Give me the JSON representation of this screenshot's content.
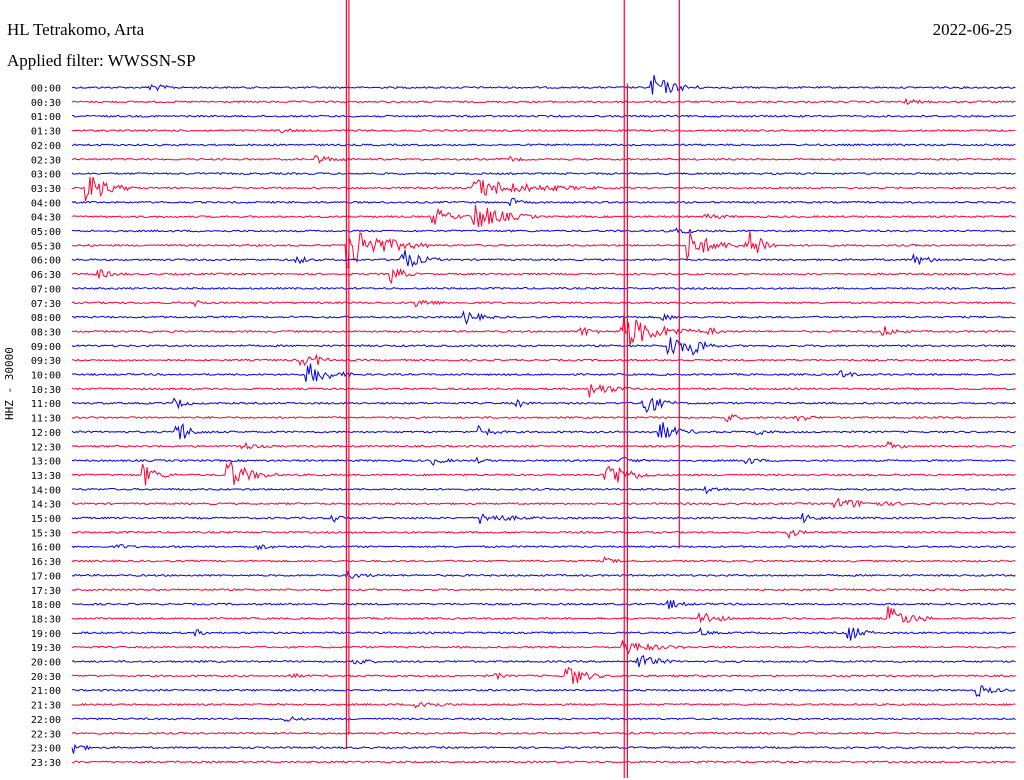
{
  "header": {
    "station": "HL Tetrakomo, Arta",
    "date": "2022-06-25",
    "filter": "Applied filter: WWSSN-SP"
  },
  "axis": {
    "ylabel": "HHZ - 30000"
  },
  "colors": {
    "trace_a": "#0000e0",
    "trace_b": "#ff0033",
    "text": "#000000"
  },
  "chart_data": {
    "type": "line",
    "title": "HL Tetrakomo, Arta",
    "subtitle": "Applied filter: WWSSN-SP",
    "ylabel": "HHZ - 30000",
    "xlabel": "",
    "rows": [
      "00:00",
      "00:30",
      "01:00",
      "01:30",
      "02:00",
      "02:30",
      "03:00",
      "03:30",
      "04:00",
      "04:30",
      "05:00",
      "05:30",
      "06:00",
      "06:30",
      "07:00",
      "07:30",
      "08:00",
      "08:30",
      "09:00",
      "09:30",
      "10:00",
      "10:30",
      "11:00",
      "11:30",
      "12:00",
      "12:30",
      "13:00",
      "13:30",
      "14:00",
      "14:30",
      "15:00",
      "15:30",
      "16:00",
      "16:30",
      "17:00",
      "17:30",
      "18:00",
      "18:30",
      "19:00",
      "19:30",
      "20:00",
      "20:30",
      "21:00",
      "21:30",
      "22:00",
      "22:30",
      "23:00",
      "23:30"
    ],
    "row_colors": [
      "trace_a",
      "trace_b"
    ],
    "row_duration_min": 30,
    "events": [
      {
        "row": 0,
        "minute": 2.5,
        "amp": 0.7,
        "len": 1.0
      },
      {
        "row": 0,
        "minute": 18.5,
        "amp": 2.0,
        "len": 1.5
      },
      {
        "row": 1,
        "minute": 26.5,
        "amp": 0.4,
        "len": 1.0
      },
      {
        "row": 3,
        "minute": 6.5,
        "amp": 0.4,
        "len": 1.0
      },
      {
        "row": 5,
        "minute": 7.8,
        "amp": 0.6,
        "len": 1.2
      },
      {
        "row": 5,
        "minute": 14.0,
        "amp": 0.3,
        "len": 0.6
      },
      {
        "row": 7,
        "minute": 0.5,
        "amp": 2.5,
        "len": 1.5
      },
      {
        "row": 7,
        "minute": 12.8,
        "amp": 1.6,
        "len": 4.0
      },
      {
        "row": 8,
        "minute": 14.0,
        "amp": 0.6,
        "len": 0.6
      },
      {
        "row": 9,
        "minute": 11.5,
        "amp": 1.5,
        "len": 1.2
      },
      {
        "row": 9,
        "minute": 12.8,
        "amp": 2.5,
        "len": 2.0
      },
      {
        "row": 9,
        "minute": 20.2,
        "amp": 0.5,
        "len": 1.0
      },
      {
        "row": 10,
        "minute": 19.3,
        "amp": 0.9,
        "len": 0.6
      },
      {
        "row": 11,
        "minute": 8.8,
        "amp": 4.0,
        "len": 2.5
      },
      {
        "row": 11,
        "minute": 19.6,
        "amp": 2.5,
        "len": 1.8
      },
      {
        "row": 11,
        "minute": 21.5,
        "amp": 2.6,
        "len": 1.0
      },
      {
        "row": 11,
        "minute": 21.8,
        "amp": 0.8,
        "len": 0.6
      },
      {
        "row": 12,
        "minute": 7.2,
        "amp": 0.7,
        "len": 0.6
      },
      {
        "row": 12,
        "minute": 10.5,
        "amp": 2.0,
        "len": 1.2
      },
      {
        "row": 12,
        "minute": 26.8,
        "amp": 1.0,
        "len": 1.0
      },
      {
        "row": 13,
        "minute": 0.8,
        "amp": 0.8,
        "len": 1.0
      },
      {
        "row": 13,
        "minute": 10.2,
        "amp": 1.5,
        "len": 0.8
      },
      {
        "row": 15,
        "minute": 4.0,
        "amp": 0.5,
        "len": 0.5
      },
      {
        "row": 15,
        "minute": 11.0,
        "amp": 0.8,
        "len": 1.0
      },
      {
        "row": 16,
        "minute": 12.5,
        "amp": 1.2,
        "len": 1.0
      },
      {
        "row": 16,
        "minute": 18.8,
        "amp": 0.7,
        "len": 0.6
      },
      {
        "row": 17,
        "minute": 16.2,
        "amp": 0.9,
        "len": 0.8
      },
      {
        "row": 17,
        "minute": 17.5,
        "amp": 3.2,
        "len": 2.5
      },
      {
        "row": 17,
        "minute": 25.8,
        "amp": 0.9,
        "len": 0.8
      },
      {
        "row": 17,
        "minute": 20.3,
        "amp": 0.6,
        "len": 0.6
      },
      {
        "row": 18,
        "minute": 19.0,
        "amp": 2.0,
        "len": 1.5
      },
      {
        "row": 18,
        "minute": 19.8,
        "amp": 1.2,
        "len": 0.8
      },
      {
        "row": 19,
        "minute": 7.3,
        "amp": 1.2,
        "len": 0.6
      },
      {
        "row": 19,
        "minute": 7.8,
        "amp": 0.7,
        "len": 0.6
      },
      {
        "row": 20,
        "minute": 7.5,
        "amp": 2.0,
        "len": 1.5
      },
      {
        "row": 20,
        "minute": 24.5,
        "amp": 0.8,
        "len": 0.6
      },
      {
        "row": 21,
        "minute": 16.5,
        "amp": 1.3,
        "len": 1.5
      },
      {
        "row": 22,
        "minute": 3.3,
        "amp": 1.0,
        "len": 0.6
      },
      {
        "row": 22,
        "minute": 14.2,
        "amp": 0.6,
        "len": 0.5
      },
      {
        "row": 22,
        "minute": 18.2,
        "amp": 2.5,
        "len": 1.0
      },
      {
        "row": 23,
        "minute": 20.8,
        "amp": 0.8,
        "len": 0.8
      },
      {
        "row": 23,
        "minute": 23.0,
        "amp": 0.9,
        "len": 0.8
      },
      {
        "row": 24,
        "minute": 3.5,
        "amp": 0.8,
        "len": 1.0
      },
      {
        "row": 24,
        "minute": 3.3,
        "amp": 1.8,
        "len": 0.6
      },
      {
        "row": 24,
        "minute": 13.0,
        "amp": 1.0,
        "len": 0.8
      },
      {
        "row": 24,
        "minute": 18.7,
        "amp": 1.8,
        "len": 1.2
      },
      {
        "row": 24,
        "minute": 21.8,
        "amp": 0.5,
        "len": 0.6
      },
      {
        "row": 25,
        "minute": 5.4,
        "amp": 0.7,
        "len": 1.0
      },
      {
        "row": 25,
        "minute": 26.0,
        "amp": 0.6,
        "len": 0.8
      },
      {
        "row": 26,
        "minute": 11.5,
        "amp": 0.6,
        "len": 0.8
      },
      {
        "row": 26,
        "minute": 12.8,
        "amp": 0.5,
        "len": 0.6
      },
      {
        "row": 26,
        "minute": 17.5,
        "amp": 0.6,
        "len": 0.8
      },
      {
        "row": 26,
        "minute": 21.5,
        "amp": 0.6,
        "len": 0.6
      },
      {
        "row": 27,
        "minute": 2.3,
        "amp": 1.8,
        "len": 1.0
      },
      {
        "row": 27,
        "minute": 5.0,
        "amp": 2.5,
        "len": 1.5
      },
      {
        "row": 27,
        "minute": 17.0,
        "amp": 2.8,
        "len": 1.5
      },
      {
        "row": 28,
        "minute": 20.2,
        "amp": 0.6,
        "len": 0.8
      },
      {
        "row": 29,
        "minute": 24.3,
        "amp": 0.8,
        "len": 3.0
      },
      {
        "row": 30,
        "minute": 8.3,
        "amp": 0.7,
        "len": 0.6
      },
      {
        "row": 30,
        "minute": 13.0,
        "amp": 0.9,
        "len": 2.0
      },
      {
        "row": 30,
        "minute": 23.3,
        "amp": 0.8,
        "len": 0.8
      },
      {
        "row": 31,
        "minute": 22.8,
        "amp": 0.9,
        "len": 0.6
      },
      {
        "row": 32,
        "minute": 1.5,
        "amp": 0.4,
        "len": 0.6
      },
      {
        "row": 32,
        "minute": 6.0,
        "amp": 0.5,
        "len": 0.6
      },
      {
        "row": 33,
        "minute": 17.0,
        "amp": 0.5,
        "len": 0.6
      },
      {
        "row": 34,
        "minute": 8.8,
        "amp": 0.5,
        "len": 1.2
      },
      {
        "row": 36,
        "minute": 19.0,
        "amp": 0.8,
        "len": 0.8
      },
      {
        "row": 37,
        "minute": 20.0,
        "amp": 1.5,
        "len": 1.0
      },
      {
        "row": 37,
        "minute": 26.0,
        "amp": 2.0,
        "len": 1.5
      },
      {
        "row": 38,
        "minute": 24.7,
        "amp": 1.8,
        "len": 0.8
      },
      {
        "row": 38,
        "minute": 20.0,
        "amp": 0.6,
        "len": 0.6
      },
      {
        "row": 38,
        "minute": 4.0,
        "amp": 0.4,
        "len": 0.6
      },
      {
        "row": 39,
        "minute": 17.5,
        "amp": 1.2,
        "len": 2.0
      },
      {
        "row": 40,
        "minute": 9.0,
        "amp": 0.7,
        "len": 0.8
      },
      {
        "row": 40,
        "minute": 18.0,
        "amp": 1.4,
        "len": 1.2
      },
      {
        "row": 41,
        "minute": 15.7,
        "amp": 2.5,
        "len": 1.2
      },
      {
        "row": 41,
        "minute": 7.0,
        "amp": 0.4,
        "len": 0.6
      },
      {
        "row": 41,
        "minute": 13.5,
        "amp": 0.5,
        "len": 0.5
      },
      {
        "row": 42,
        "minute": 28.8,
        "amp": 1.0,
        "len": 1.0
      },
      {
        "row": 43,
        "minute": 11.0,
        "amp": 0.9,
        "len": 1.2
      },
      {
        "row": 44,
        "minute": 6.8,
        "amp": 0.6,
        "len": 0.6
      },
      {
        "row": 46,
        "minute": 0.1,
        "amp": 1.0,
        "len": 0.6
      }
    ],
    "vertical_spikes": [
      {
        "minute": 8.72,
        "from_row": 0,
        "to_row": 45
      },
      {
        "minute": 8.8,
        "from_row": 0,
        "to_row": 44
      },
      {
        "minute": 17.55,
        "from_row": 0,
        "to_row": 47
      },
      {
        "minute": 17.65,
        "from_row": 6,
        "to_row": 47
      },
      {
        "minute": 19.3,
        "from_row": 0,
        "to_row": 31
      }
    ]
  }
}
